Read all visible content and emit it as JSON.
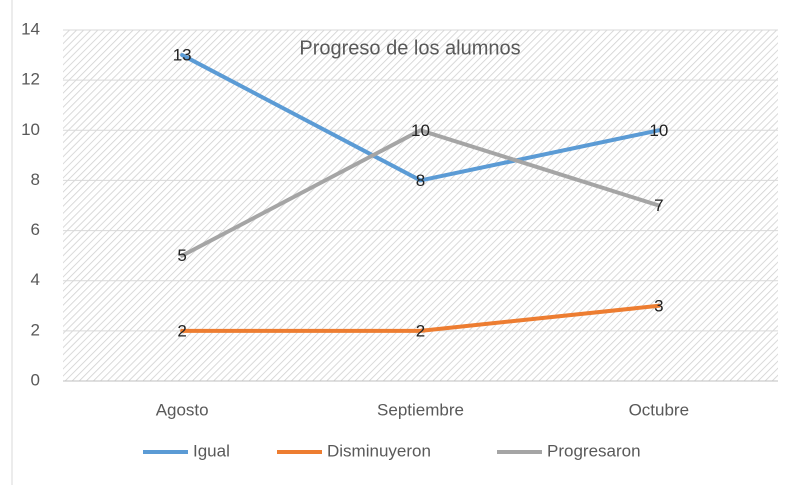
{
  "chart_data": {
    "type": "line",
    "title": "Progreso de los alumnos",
    "categories": [
      "Agosto",
      "Septiembre",
      "Octubre"
    ],
    "series": [
      {
        "name": "Igual",
        "color": "#5b9bd5",
        "values": [
          13,
          8,
          10
        ]
      },
      {
        "name": "Disminuyeron",
        "color": "#ed7d31",
        "values": [
          2,
          2,
          3
        ]
      },
      {
        "name": "Progresaron",
        "color": "#a5a5a5",
        "values": [
          5,
          10,
          7
        ]
      }
    ],
    "ylim": [
      0,
      14
    ],
    "yticks": [
      0,
      2,
      4,
      6,
      8,
      10,
      12,
      14
    ],
    "grid": true,
    "data_labels": true,
    "legend": "bottom"
  }
}
